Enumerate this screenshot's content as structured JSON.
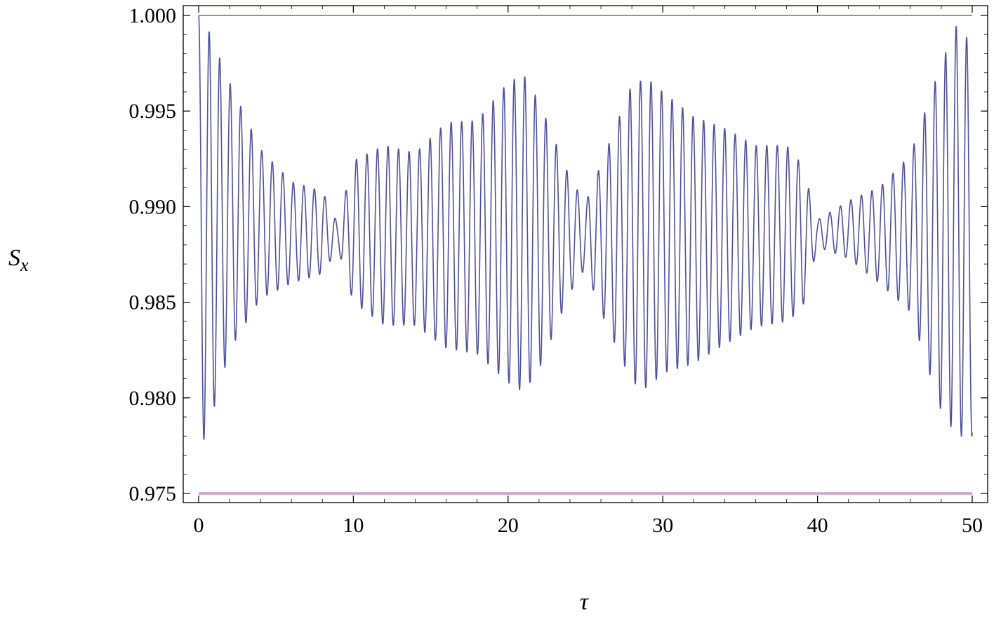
{
  "chart_data": {
    "type": "line",
    "title": "",
    "xlabel": "τ",
    "ylabel_main": "S",
    "ylabel_sub": "x",
    "xlim": [
      0,
      50
    ],
    "ylim": [
      0.975,
      1.0
    ],
    "grid": false,
    "legend": "none",
    "x_ticks": [
      {
        "value": 0,
        "label": "0"
      },
      {
        "value": 10,
        "label": "10"
      },
      {
        "value": 20,
        "label": "20"
      },
      {
        "value": 30,
        "label": "30"
      },
      {
        "value": 40,
        "label": "40"
      },
      {
        "value": 50,
        "label": "50"
      }
    ],
    "y_ticks": [
      {
        "value": 1.0,
        "label": "1.000"
      },
      {
        "value": 0.995,
        "label": "0.995"
      },
      {
        "value": 0.99,
        "label": "0.990"
      },
      {
        "value": 0.985,
        "label": "0.985"
      },
      {
        "value": 0.98,
        "label": "0.980"
      },
      {
        "value": 0.975,
        "label": "0.975"
      }
    ],
    "series": [
      {
        "color": "#4f519e",
        "kind": "oscillation",
        "oscillation_period": 0.68,
        "baseline": 0.9886,
        "envelope_tau": [
          0,
          0.5,
          2,
          4,
          6,
          8,
          9,
          10,
          12,
          14,
          16,
          18,
          20,
          21,
          22,
          24,
          25,
          26,
          28,
          29,
          30,
          32,
          34,
          36,
          38,
          39,
          40,
          42,
          44,
          46,
          48,
          49,
          50
        ],
        "envelope_upper": [
          1.0,
          0.9995,
          0.9965,
          0.993,
          0.9913,
          0.9908,
          0.9891,
          0.9924,
          0.9932,
          0.9928,
          0.9944,
          0.9945,
          0.9965,
          0.9969,
          0.9955,
          0.9915,
          0.9902,
          0.9922,
          0.9964,
          0.9967,
          0.996,
          0.9947,
          0.9941,
          0.9932,
          0.9932,
          0.9922,
          0.9893,
          0.9903,
          0.991,
          0.9927,
          0.9975,
          0.9995,
          0.9985
        ],
        "envelope_lower": [
          0.9775,
          0.978,
          0.9825,
          0.9852,
          0.986,
          0.9865,
          0.9878,
          0.985,
          0.9838,
          0.9838,
          0.9826,
          0.9823,
          0.9808,
          0.9803,
          0.9815,
          0.9855,
          0.9868,
          0.9845,
          0.9808,
          0.9805,
          0.9813,
          0.9818,
          0.9828,
          0.9837,
          0.984,
          0.9846,
          0.9879,
          0.9873,
          0.986,
          0.9845,
          0.9793,
          0.978,
          0.978
        ]
      },
      {
        "color": "#a09a55",
        "kind": "constant",
        "value": 1.0
      },
      {
        "color": "#c9a0c8",
        "kind": "constant",
        "value": 0.975
      }
    ]
  }
}
